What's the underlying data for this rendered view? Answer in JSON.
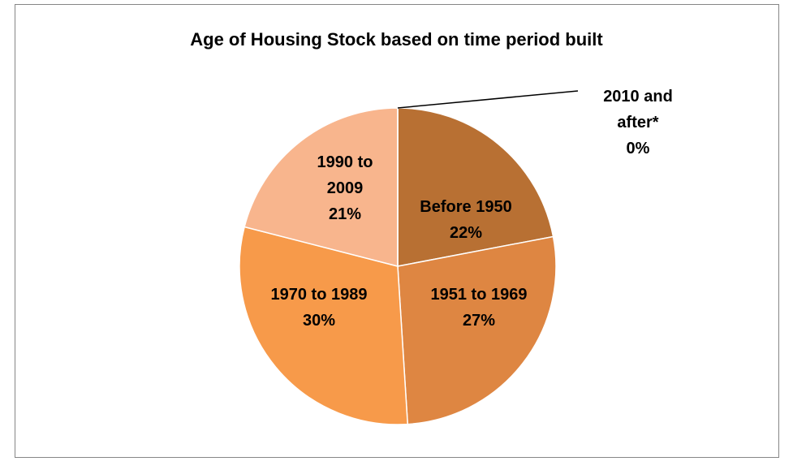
{
  "chart_data": {
    "type": "pie",
    "title": "Age of Housing Stock based on time period built",
    "categories": [
      "Before 1950",
      "1951 to 1969",
      "1970 to 1989",
      "1990 to 2009",
      "2010 and after*"
    ],
    "values": [
      22,
      27,
      30,
      21,
      0
    ],
    "value_labels": [
      "22%",
      "27%",
      "30%",
      "21%",
      "0%"
    ],
    "colors": [
      "#b87033",
      "#de8642",
      "#f79a4a",
      "#f8b58d",
      "#fbd5bd"
    ]
  }
}
